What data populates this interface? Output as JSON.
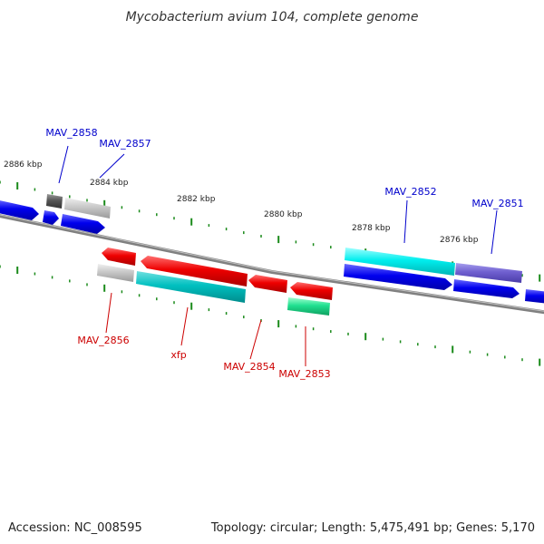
{
  "title": "Mycobacterium avium 104, complete genome",
  "footer": {
    "accession": "Accession: NC_008595",
    "summary": "Topology: circular; Length: 5,475,491 bp; Genes: 5,170"
  },
  "colors": {
    "forward_cds": "#0000ee",
    "reverse_cds": "#ee0000",
    "backbone": "#888888",
    "tick": "#1a8a1a",
    "label_forward": "#0000cc",
    "label_reverse": "#cc0000"
  },
  "scale_labels": [
    "2886 kbp",
    "2884 kbp",
    "2882 kbp",
    "2880 kbp",
    "2878 kbp",
    "2876 kbp"
  ],
  "gene_labels": [
    "MAV_2858",
    "MAV_2857",
    "MAV_2852",
    "MAV_2851",
    "MAV_2856",
    "xfp",
    "MAV_2854",
    "MAV_2853"
  ]
}
